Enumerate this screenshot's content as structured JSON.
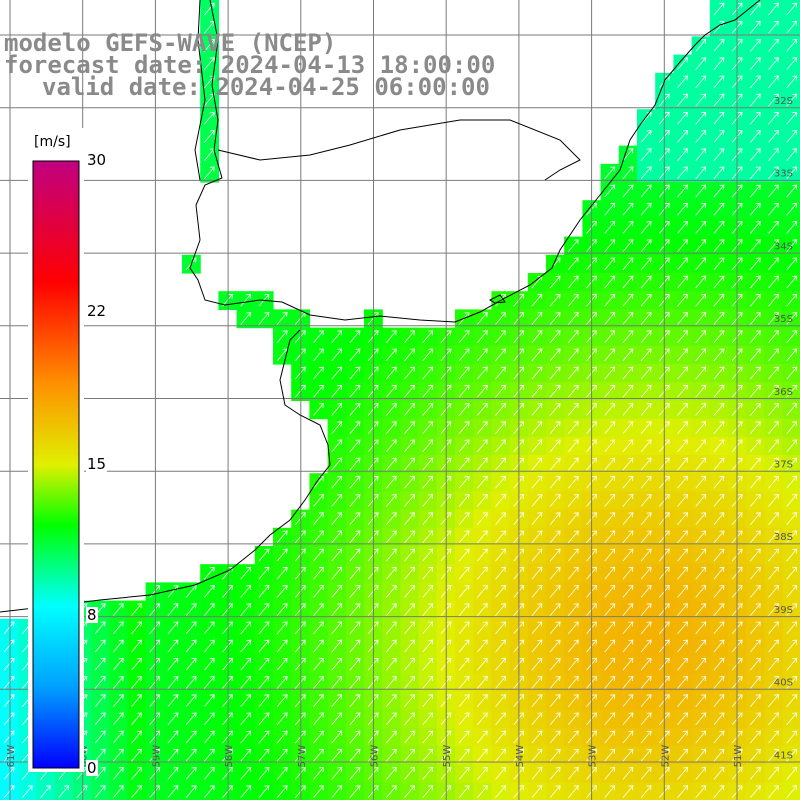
{
  "title": {
    "model": "modelo GEFS-WAVE (NCEP)",
    "forecast": "forecast date: 2024-04-13 18:00:00",
    "valid": "valid date: 2024-04-25 06:00:00"
  },
  "colorbar": {
    "unit": "[m/s]",
    "min": 0,
    "max": 30,
    "ticks": [
      {
        "value": 30,
        "label": "30"
      },
      {
        "value": 22,
        "label": "22"
      },
      {
        "value": 15,
        "label": "15"
      },
      {
        "value": 8,
        "label": "8"
      },
      {
        "value": 0,
        "label": "0"
      }
    ],
    "stops": [
      {
        "value": 0,
        "color": "#0000ff"
      },
      {
        "value": 4,
        "color": "#00a0ff"
      },
      {
        "value": 8,
        "color": "#00ffff"
      },
      {
        "value": 12,
        "color": "#00ff00"
      },
      {
        "value": 15,
        "color": "#e0f000"
      },
      {
        "value": 19,
        "color": "#ff9000"
      },
      {
        "value": 24,
        "color": "#ff0000"
      },
      {
        "value": 30,
        "color": "#c00080"
      }
    ]
  },
  "map": {
    "lon_labels": [
      "61W",
      "60W",
      "59W",
      "58W",
      "57W",
      "56W",
      "55W",
      "54W",
      "53W",
      "52W",
      "51W"
    ],
    "lat_labels": [
      "32S",
      "33S",
      "34S",
      "35S",
      "36S",
      "37S",
      "38S",
      "39S",
      "40S",
      "41S"
    ],
    "land_color": "#ffffff",
    "grid_color": "#7a7a7a",
    "coast_color": "#000000",
    "arrow_color": "#ffffff",
    "wind_direction": "toward northeast"
  }
}
